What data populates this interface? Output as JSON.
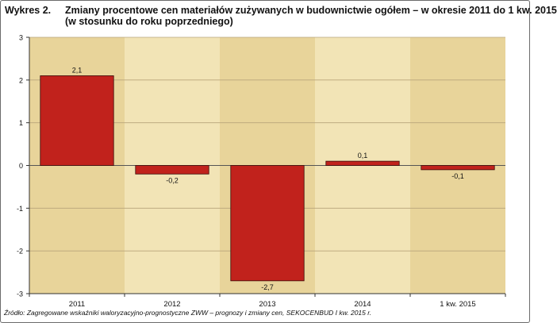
{
  "header": {
    "figure_label": "Wykres 2.",
    "title_line1": "Zmiany procentowe cen materiałów zużywanych w budownictwie ogółem – w okresie 2011 do 1 kw. 2015",
    "title_line2": "(w stosunku do roku poprzedniego)"
  },
  "source_note": "Źródło:  Zagregowane wskaźniki waloryzacyjno-prognostyczne ZWW – prognozy i zmiany cen, SEKOCENBUD I kw. 2015 r.",
  "colors": {
    "bar_fill": "#c1221c",
    "bar_stroke": "#3a0a08",
    "band_dark": "#e8d49a",
    "band_light": "#f2e4b6",
    "grid": "#b8a47a"
  },
  "chart_data": {
    "type": "bar",
    "categories": [
      "2011",
      "2012",
      "2013",
      "2014",
      "1 kw. 2015"
    ],
    "values": [
      2.1,
      -0.2,
      -2.7,
      0.1,
      -0.1
    ],
    "data_labels": [
      "2,1",
      "-0,2",
      "-2,7",
      "0,1",
      "-0,1"
    ],
    "ylim": [
      -3,
      3
    ],
    "yticks": [
      -3,
      -2,
      -1,
      0,
      1,
      2,
      3
    ],
    "grid": true,
    "xlabel": "",
    "ylabel": ""
  }
}
